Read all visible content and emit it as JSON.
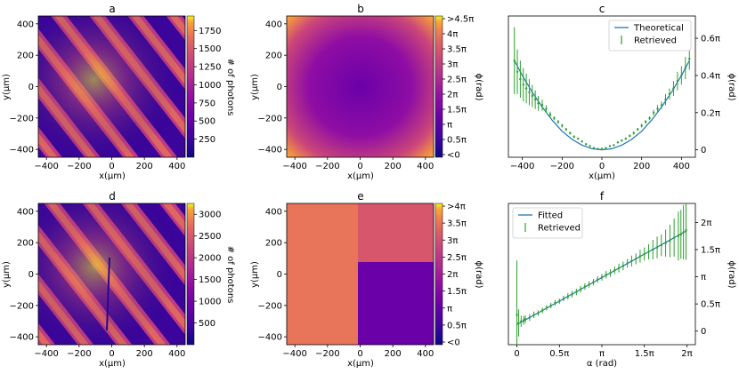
{
  "chart_data": [
    {
      "panel": "a",
      "type": "heatmap",
      "title": "a",
      "xlabel": "x(μm)",
      "ylabel": "y(μm)",
      "xlim": [
        -450,
        450
      ],
      "ylim": [
        -450,
        450
      ],
      "xticks": [
        "−400",
        "−200",
        "0",
        "200",
        "400"
      ],
      "yticks": [
        "400",
        "200",
        "0",
        "−200",
        "−400"
      ],
      "colormap": "plasma",
      "colorbar": {
        "label": "# of photons",
        "ticks": [
          "1750",
          "1500",
          "1250",
          "1000",
          "750",
          "500",
          "250"
        ],
        "range": [
          0,
          1950
        ]
      },
      "description_fringes": "diagonal interference fringes, brightest near centre-left"
    },
    {
      "panel": "b",
      "type": "heatmap",
      "title": "b",
      "xlabel": "x(μm)",
      "ylabel": "y(μm)",
      "xlim": [
        -450,
        450
      ],
      "ylim": [
        -450,
        450
      ],
      "xticks": [
        "−400",
        "−200",
        "0",
        "200",
        "400"
      ],
      "yticks": [
        "400",
        "200",
        "0",
        "−200",
        "−400"
      ],
      "colormap": "plasma",
      "colorbar": {
        "label": "ϕ(rad)",
        "ticks": [
          ">4.5π",
          "4π",
          "3.5π",
          "3π",
          "2.5π",
          "2π",
          "1.5π",
          "π",
          "0.5π",
          "<0"
        ]
      }
    },
    {
      "panel": "c",
      "type": "line",
      "title": "c",
      "xlabel": "x(μm)",
      "ylabel": "ϕ(rad)",
      "xlim": [
        -470,
        470
      ],
      "ylim": [
        -0.04,
        0.72
      ],
      "xticks": [
        "−400",
        "−200",
        "0",
        "200",
        "400"
      ],
      "yticks": [
        "0",
        "0.2π",
        "0.4π",
        "0.6π"
      ],
      "yaxis_side": "right",
      "legend": {
        "position": "top-right",
        "entries": [
          "Theoretical",
          "Retrieved"
        ]
      },
      "series": [
        {
          "name": "Theoretical",
          "kind": "curve",
          "color": "#1f77b4",
          "x": [
            -440,
            -400,
            -350,
            -300,
            -250,
            -200,
            -150,
            -100,
            -50,
            0,
            50,
            100,
            150,
            200,
            250,
            300,
            350,
            400,
            440
          ],
          "y": [
            0.48,
            0.4,
            0.31,
            0.23,
            0.16,
            0.1,
            0.056,
            0.025,
            0.006,
            0.0,
            0.006,
            0.025,
            0.056,
            0.1,
            0.16,
            0.23,
            0.31,
            0.4,
            0.48
          ]
        },
        {
          "name": "Retrieved",
          "kind": "errorbar",
          "color": "#2ca02c",
          "x": [
            -440,
            -425,
            -410,
            -395,
            -380,
            -365,
            -350,
            -335,
            -320,
            -300,
            -280,
            -260,
            -240,
            -220,
            -200,
            -180,
            -160,
            -140,
            -120,
            -100,
            -80,
            -60,
            -40,
            -20,
            0,
            20,
            40,
            60,
            80,
            100,
            120,
            140,
            160,
            180,
            200,
            220,
            240,
            260,
            280,
            300,
            320,
            340,
            360,
            380,
            400,
            420,
            440
          ],
          "y": [
            0.48,
            0.42,
            0.38,
            0.35,
            0.33,
            0.31,
            0.29,
            0.27,
            0.25,
            0.24,
            0.22,
            0.19,
            0.17,
            0.15,
            0.13,
            0.11,
            0.09,
            0.07,
            0.06,
            0.045,
            0.03,
            0.02,
            0.01,
            0.005,
            0.005,
            0.01,
            0.02,
            0.025,
            0.04,
            0.05,
            0.06,
            0.075,
            0.09,
            0.11,
            0.13,
            0.15,
            0.17,
            0.2,
            0.22,
            0.24,
            0.27,
            0.3,
            0.33,
            0.37,
            0.4,
            0.44,
            0.49
          ],
          "err": [
            0.18,
            0.12,
            0.1,
            0.09,
            0.08,
            0.07,
            0.06,
            0.05,
            0.04,
            0.03,
            0.02,
            0.015,
            0.01,
            0.01,
            0.01,
            0.008,
            0.008,
            0.008,
            0.006,
            0.006,
            0.006,
            0.005,
            0.005,
            0.005,
            0.005,
            0.005,
            0.005,
            0.005,
            0.006,
            0.006,
            0.006,
            0.008,
            0.008,
            0.008,
            0.01,
            0.01,
            0.01,
            0.015,
            0.02,
            0.02,
            0.03,
            0.03,
            0.04,
            0.05,
            0.05,
            0.06,
            0.06
          ]
        }
      ]
    },
    {
      "panel": "d",
      "type": "heatmap",
      "title": "d",
      "xlabel": "x(μm)",
      "ylabel": "y(μm)",
      "xlim": [
        -450,
        450
      ],
      "ylim": [
        -450,
        450
      ],
      "xticks": [
        "−400",
        "−200",
        "0",
        "200",
        "400"
      ],
      "yticks": [
        "400",
        "200",
        "0",
        "−200",
        "−400"
      ],
      "colormap": "plasma",
      "colorbar": {
        "label": "# of photons",
        "ticks": [
          "3000",
          "2500",
          "2000",
          "1500",
          "1000",
          "500"
        ],
        "range": [
          0,
          3250
        ]
      }
    },
    {
      "panel": "e",
      "type": "heatmap",
      "title": "e",
      "xlabel": "x(μm)",
      "ylabel": "y(μm)",
      "xlim": [
        -450,
        450
      ],
      "ylim": [
        -450,
        450
      ],
      "xticks": [
        "−400",
        "−200",
        "0",
        "200",
        "400"
      ],
      "yticks": [
        "400",
        "200",
        "0",
        "−200",
        "−400"
      ],
      "colormap": "plasma",
      "colorbar": {
        "label": "ϕ(rad)",
        "ticks": [
          ">4π",
          "3.5π",
          "3π",
          "2.5π",
          "2π",
          "1.5π",
          "π",
          "0.5π",
          "<0"
        ]
      }
    },
    {
      "panel": "f",
      "type": "line",
      "title": "f",
      "xlabel": "α (rad)",
      "ylabel": "ϕ(rad)",
      "xlim": [
        -0.1,
        2.1
      ],
      "ylim": [
        -0.25,
        2.35
      ],
      "xticks": [
        "0",
        "0.5π",
        "π",
        "1.5π",
        "2π"
      ],
      "yticks": [
        "0",
        "0.5π",
        "π",
        "1.5π",
        "2π"
      ],
      "yaxis_side": "right",
      "legend": {
        "position": "top-left",
        "entries": [
          "Fitted",
          "Retrieved"
        ]
      },
      "series": [
        {
          "name": "Fitted",
          "kind": "curve",
          "color": "#1f77b4",
          "x": [
            0,
            2
          ],
          "y": [
            0.12,
            1.85
          ]
        },
        {
          "name": "Retrieved",
          "kind": "errorbar",
          "color": "#2ca02c",
          "x": [
            0.0,
            0.02,
            0.05,
            0.08,
            0.1,
            0.15,
            0.2,
            0.25,
            0.3,
            0.35,
            0.4,
            0.45,
            0.5,
            0.55,
            0.6,
            0.65,
            0.7,
            0.75,
            0.8,
            0.85,
            0.9,
            0.95,
            1.0,
            1.05,
            1.1,
            1.15,
            1.2,
            1.25,
            1.3,
            1.35,
            1.4,
            1.45,
            1.5,
            1.55,
            1.6,
            1.65,
            1.7,
            1.75,
            1.8,
            1.85,
            1.9,
            1.93,
            1.96,
            1.99
          ],
          "y": [
            0.3,
            0.15,
            0.18,
            0.2,
            0.22,
            0.25,
            0.3,
            0.33,
            0.38,
            0.43,
            0.47,
            0.52,
            0.55,
            0.6,
            0.64,
            0.68,
            0.72,
            0.77,
            0.82,
            0.86,
            0.9,
            0.95,
            0.99,
            1.04,
            1.07,
            1.12,
            1.16,
            1.2,
            1.25,
            1.29,
            1.33,
            1.38,
            1.42,
            1.46,
            1.5,
            1.54,
            1.58,
            1.62,
            1.66,
            1.72,
            1.75,
            1.78,
            1.82,
            1.86
          ],
          "err": [
            1.0,
            0.25,
            0.1,
            0.08,
            0.07,
            0.06,
            0.06,
            0.05,
            0.05,
            0.05,
            0.05,
            0.05,
            0.05,
            0.05,
            0.06,
            0.06,
            0.06,
            0.06,
            0.06,
            0.06,
            0.06,
            0.06,
            0.06,
            0.07,
            0.07,
            0.07,
            0.08,
            0.08,
            0.08,
            0.1,
            0.1,
            0.12,
            0.12,
            0.14,
            0.18,
            0.2,
            0.2,
            0.25,
            0.3,
            0.35,
            0.45,
            0.45,
            0.5,
            0.55
          ]
        }
      ]
    }
  ]
}
